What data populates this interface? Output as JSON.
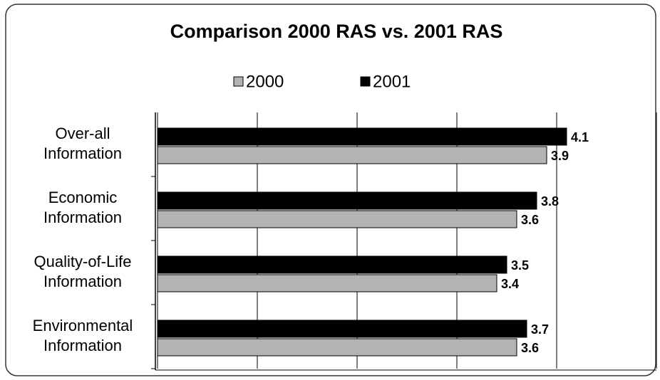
{
  "chart_data": {
    "type": "hbar",
    "title": "Comparison 2000 RAS vs. 2001 RAS",
    "categories": [
      [
        "Over-all",
        "Information"
      ],
      [
        "Economic",
        "Information"
      ],
      [
        "Quality-of-Life",
        "Information"
      ],
      [
        "Environmental",
        "Information"
      ]
    ],
    "series": [
      {
        "name": "2000",
        "color": "#b3b3b3",
        "values": [
          3.9,
          3.6,
          3.4,
          3.6
        ]
      },
      {
        "name": "2001",
        "color": "#000000",
        "values": [
          4.1,
          3.8,
          3.5,
          3.7
        ]
      }
    ],
    "xlim": [
      0,
      5
    ],
    "xticks": [
      0,
      1,
      2,
      3,
      4,
      5
    ],
    "grid": true
  }
}
